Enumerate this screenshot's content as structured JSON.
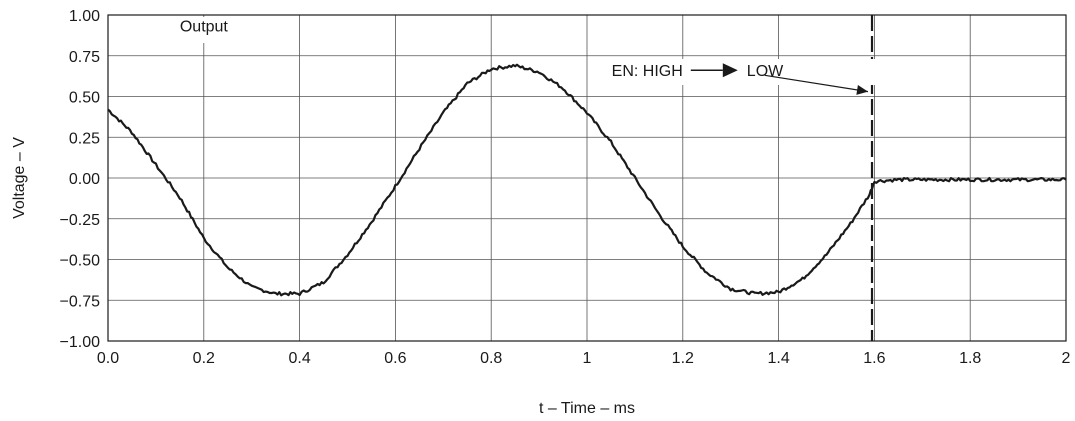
{
  "chart_data": {
    "type": "line",
    "xlabel": "t – Time – ms",
    "ylabel": "Voltage – V",
    "xlim": [
      0,
      2
    ],
    "ylim": [
      -1.0,
      1.0
    ],
    "x_ticks": [
      0.0,
      0.2,
      0.4,
      0.6,
      0.8,
      1.0,
      1.2,
      1.4,
      1.6,
      1.8,
      2.0
    ],
    "x_tick_labels": [
      "0.0",
      "0.2",
      "0.4",
      "0.6",
      "0.8",
      "1",
      "1.2",
      "1.4",
      "1.6",
      "1.8",
      "2"
    ],
    "y_ticks": [
      1.0,
      0.75,
      0.5,
      0.25,
      0.0,
      -0.25,
      -0.5,
      -0.75,
      -1.0
    ],
    "y_tick_labels": [
      "1.00",
      "0.75",
      "0.50",
      "0.25",
      "0.00",
      "−0.25",
      "−0.50",
      "−0.75",
      "−1.00"
    ],
    "grid": true,
    "series": [
      {
        "name": "Output",
        "color": "#1a1a1a",
        "x": [
          0.0,
          0.05,
          0.1,
          0.15,
          0.2,
          0.25,
          0.3,
          0.35,
          0.4,
          0.45,
          0.5,
          0.55,
          0.6,
          0.65,
          0.7,
          0.75,
          0.8,
          0.85,
          0.9,
          0.95,
          1.0,
          1.05,
          1.1,
          1.15,
          1.2,
          1.25,
          1.3,
          1.35,
          1.4,
          1.45,
          1.5,
          1.55,
          1.59,
          1.595,
          1.6,
          1.65,
          1.7,
          1.8,
          1.9,
          2.0
        ],
        "y": [
          0.42,
          0.28,
          0.08,
          -0.12,
          -0.37,
          -0.55,
          -0.67,
          -0.71,
          -0.71,
          -0.64,
          -0.47,
          -0.27,
          -0.05,
          0.18,
          0.4,
          0.58,
          0.67,
          0.69,
          0.65,
          0.55,
          0.4,
          0.22,
          0.0,
          -0.22,
          -0.42,
          -0.58,
          -0.68,
          -0.71,
          -0.7,
          -0.62,
          -0.47,
          -0.28,
          -0.1,
          -0.06,
          -0.02,
          -0.01,
          -0.01,
          -0.01,
          -0.01,
          -0.01
        ]
      }
    ],
    "enable_event": {
      "x": 1.595,
      "line_style": "dashed"
    },
    "annotations": {
      "output_label": "Output",
      "en_label": "EN: HIGH",
      "low_label": "LOW"
    }
  }
}
